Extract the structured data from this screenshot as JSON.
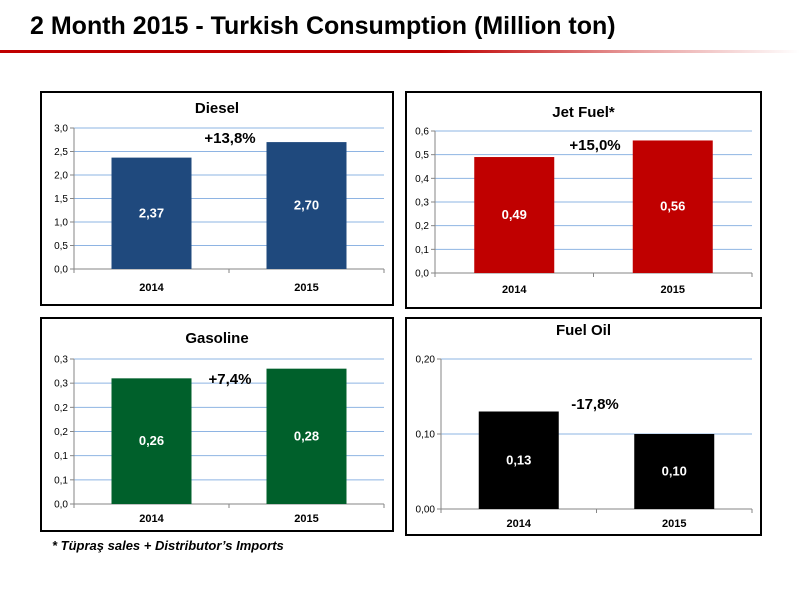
{
  "page": {
    "title": "2 Month 2015 - Turkish Consumption (Million ton)",
    "footnote": "* Tüpraş sales + Distributor’s Imports"
  },
  "chart_data": [
    {
      "type": "bar",
      "title": "Diesel",
      "categories": [
        "2014",
        "2015"
      ],
      "values": [
        2.37,
        2.7
      ],
      "value_labels": [
        "2,37",
        "2,70"
      ],
      "change_label": "+13,8%",
      "ylim": [
        0,
        3.0
      ],
      "yticks": [
        "0,0",
        "0,5",
        "1,0",
        "1,5",
        "2,0",
        "2,5",
        "3,0"
      ],
      "grid": true,
      "color": "#1f497d"
    },
    {
      "type": "bar",
      "title": "Jet Fuel*",
      "categories": [
        "2014",
        "2015"
      ],
      "values": [
        0.49,
        0.56
      ],
      "value_labels": [
        "0,49",
        "0,56"
      ],
      "change_label": "+15,0%",
      "ylim": [
        0,
        0.6
      ],
      "yticks": [
        "0,0",
        "0,1",
        "0,2",
        "0,3",
        "0,4",
        "0,5",
        "0,6"
      ],
      "grid": true,
      "color": "#c00000"
    },
    {
      "type": "bar",
      "title": "Gasoline",
      "categories": [
        "2014",
        "2015"
      ],
      "values": [
        0.26,
        0.28
      ],
      "value_labels": [
        "0,26",
        "0,28"
      ],
      "change_label": "+7,4%",
      "ylim": [
        0,
        0.3
      ],
      "yticks": [
        "0,0",
        "0,1",
        "0,1",
        "0,2",
        "0,2",
        "0,3",
        "0,3"
      ],
      "grid": true,
      "color": "#00602b"
    },
    {
      "type": "bar",
      "title": "Fuel Oil",
      "categories": [
        "2014",
        "2015"
      ],
      "values": [
        0.13,
        0.1
      ],
      "value_labels": [
        "0,13",
        "0,10"
      ],
      "change_label": "-17,8%",
      "ylim": [
        0,
        0.2
      ],
      "yticks": [
        "0,00",
        "0,10",
        "0,20"
      ],
      "grid": true,
      "color": "#000000"
    }
  ]
}
